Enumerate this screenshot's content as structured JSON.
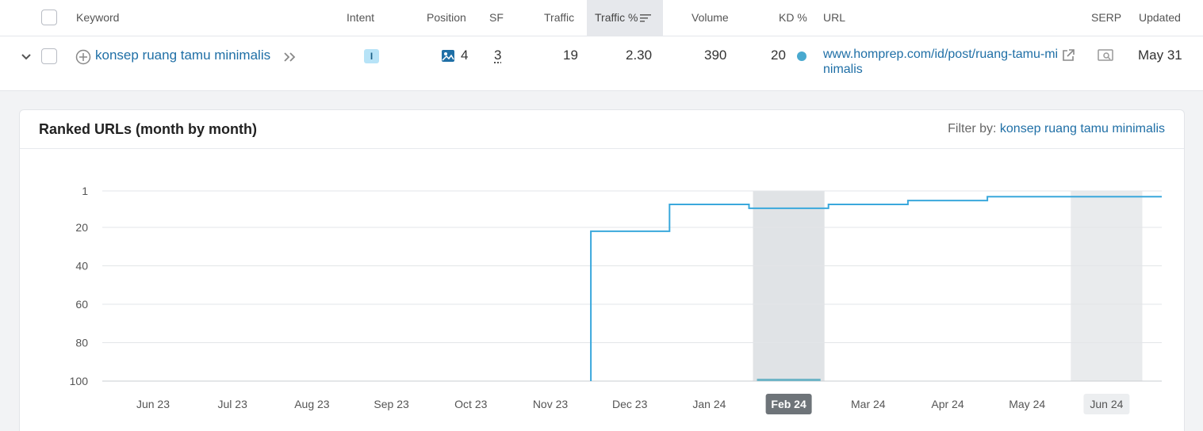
{
  "table": {
    "headers": {
      "keyword": "Keyword",
      "intent": "Intent",
      "position": "Position",
      "sf": "SF",
      "traffic": "Traffic",
      "traffic_pct": "Traffic %",
      "volume": "Volume",
      "kd": "KD %",
      "url": "URL",
      "serp": "SERP",
      "updated": "Updated"
    },
    "row": {
      "keyword": "konsep ruang tamu minimalis",
      "intent": "I",
      "position": "4",
      "sf": "3",
      "traffic": "19",
      "traffic_pct": "2.30",
      "volume": "390",
      "kd": "20",
      "url": "www.homprep.com/id/post/ruang-tamu-minimalis",
      "updated": "May 31"
    },
    "icons": {
      "expand": "chevron-down-icon",
      "add": "add-circle-icon",
      "more": "double-chevron-right-icon",
      "position_feature": "image-icon",
      "external": "external-link-icon",
      "serp": "serp-preview-icon",
      "sort": "sort-desc-icon"
    },
    "colors": {
      "link": "#1f6fa6",
      "intent_badge": "#b7e3f7",
      "kd_dot": "#49a9cf"
    }
  },
  "panel": {
    "title": "Ranked URLs (month by month)",
    "filter_label": "Filter by:",
    "filter_value": "konsep ruang tamu minimalis"
  },
  "chart_data": {
    "type": "line",
    "step": true,
    "title": "",
    "xlabel": "",
    "ylabel": "",
    "y_inverted": true,
    "ylim": [
      1,
      100
    ],
    "yticks": [
      1,
      20,
      40,
      60,
      80,
      100
    ],
    "xticks": [
      "Jun 23",
      "Jul 23",
      "Aug 23",
      "Sep 23",
      "Oct 23",
      "Nov 23",
      "Dec 23",
      "Jan 24",
      "Feb 24",
      "Mar 24",
      "Apr 24",
      "May 24",
      "Jun 24"
    ],
    "highlighted_months": [
      "Feb 24",
      "Jun 24"
    ],
    "selected_month": "Feb 24",
    "grid": true,
    "line_color": "#3aa8dc",
    "series": [
      {
        "points": [
          {
            "x": "Dec 23",
            "y": 22
          },
          {
            "x": "Jan 24",
            "y": 8
          },
          {
            "x": "Feb 24",
            "y": 10
          },
          {
            "x": "Mar 24",
            "y": 8
          },
          {
            "x": "Apr 24",
            "y": 6
          },
          {
            "x": "May 24",
            "y": 4
          },
          {
            "x": "Jun 24",
            "y": 4
          }
        ]
      }
    ]
  }
}
